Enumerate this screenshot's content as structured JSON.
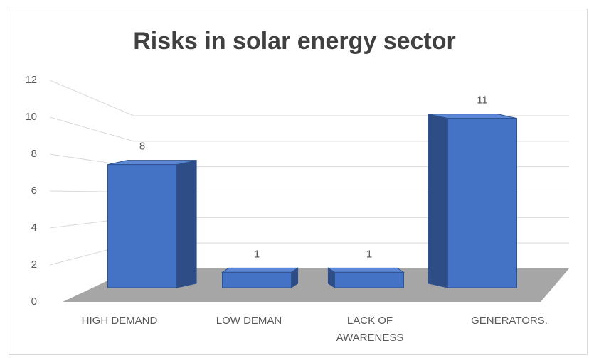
{
  "chart_data": {
    "type": "bar3d",
    "title": "Risks in solar energy sector",
    "categories": [
      "HIGH DEMAND",
      "LOW DEMAN",
      "LACK OF AWARENESS",
      "GENERATORS."
    ],
    "values": [
      8,
      1,
      1,
      11
    ],
    "color": "#4472c4",
    "ylim": [
      0,
      12
    ],
    "yticks": [
      0,
      2,
      4,
      6,
      8,
      10,
      12
    ],
    "grid": true
  }
}
